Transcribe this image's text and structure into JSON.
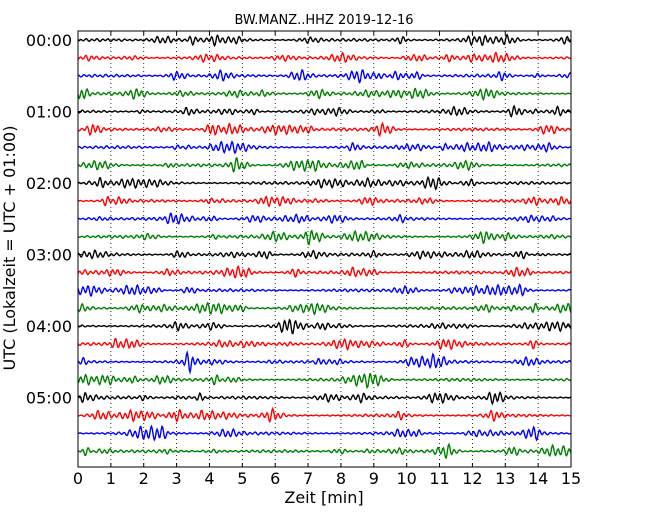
{
  "chart_data": {
    "type": "line",
    "title": "BW.MANZ..HHZ 2019-12-16",
    "xlabel": "Zeit  [min]",
    "ylabel": "UTC (Lokalzeit = UTC + 01:00)",
    "xlim": [
      0,
      15
    ],
    "x_ticks": [
      "0",
      "1",
      "2",
      "3",
      "4",
      "5",
      "6",
      "7",
      "8",
      "9",
      "10",
      "11",
      "12",
      "13",
      "14",
      "15"
    ],
    "y_ticks": [
      "00:00",
      "01:00",
      "02:00",
      "03:00",
      "04:00",
      "05:00"
    ],
    "grid": "vertical dotted lines at each minute",
    "trace_interval_min": 15,
    "trace_colors": [
      "#000000",
      "#ff0000",
      "#0000ff",
      "#007f00"
    ],
    "series": [
      {
        "start": "00:00"
      },
      {
        "start": "00:15"
      },
      {
        "start": "00:30"
      },
      {
        "start": "00:45"
      },
      {
        "start": "01:00"
      },
      {
        "start": "01:15"
      },
      {
        "start": "01:30"
      },
      {
        "start": "01:45"
      },
      {
        "start": "02:00"
      },
      {
        "start": "02:15"
      },
      {
        "start": "02:30"
      },
      {
        "start": "02:45"
      },
      {
        "start": "03:00"
      },
      {
        "start": "03:15"
      },
      {
        "start": "03:30"
      },
      {
        "start": "03:45"
      },
      {
        "start": "04:00"
      },
      {
        "start": "04:15"
      },
      {
        "start": "04:30"
      },
      {
        "start": "04:45"
      },
      {
        "start": "05:00"
      },
      {
        "start": "05:15"
      },
      {
        "start": "05:30"
      },
      {
        "start": "05:45"
      }
    ]
  }
}
